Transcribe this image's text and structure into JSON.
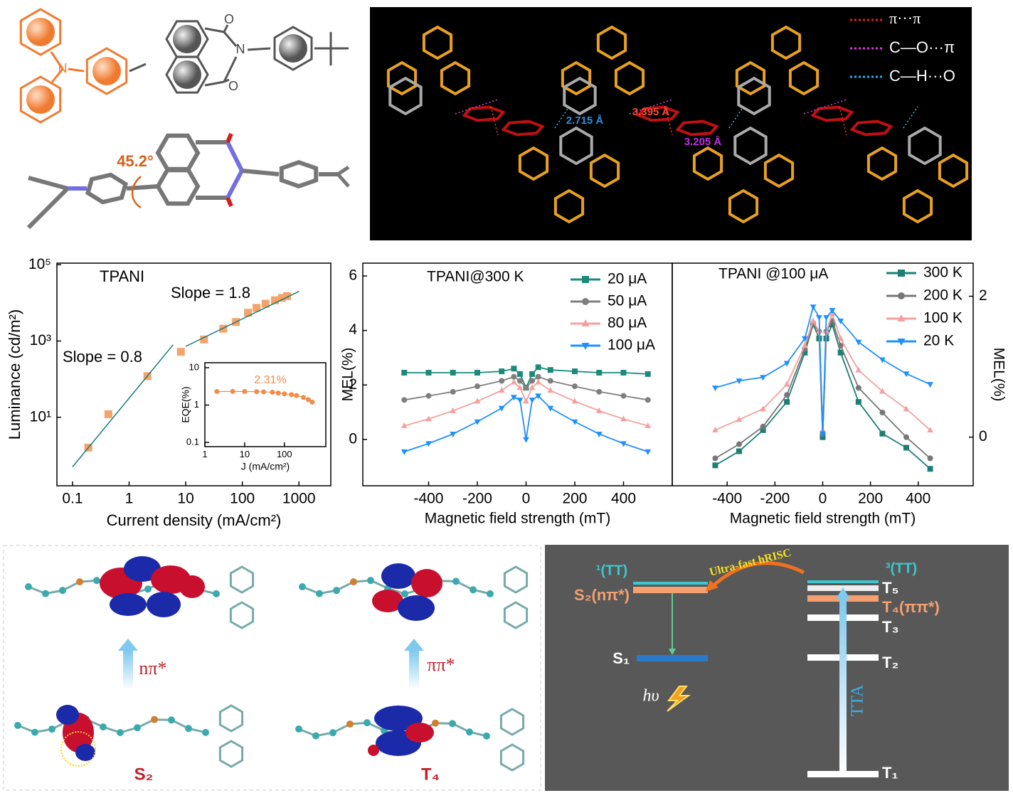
{
  "structure": {
    "atoms": [
      "N",
      "N",
      "O",
      "O"
    ],
    "angle": "45.2°"
  },
  "crystal": {
    "legend": [
      "π···π",
      "C—O···π",
      "C—H···O"
    ],
    "distances": [
      "2.715 Å",
      "3.395 Å",
      "3.205 Å"
    ]
  },
  "chart_data": [
    {
      "type": "scatter",
      "xscale": "log",
      "yscale": "log",
      "xlim": [
        0.053,
        3650
      ],
      "ylim": [
        0.16,
        110000
      ],
      "xticks": [
        0.1,
        1,
        10,
        100,
        1000
      ],
      "yticks": [
        {
          "value": 10,
          "label": "10¹"
        },
        {
          "value": 1000,
          "label": "10³"
        },
        {
          "value": 100000,
          "label": "10⁵"
        }
      ],
      "xlabel": "Current density (mA/cm²)",
      "ylabel": "Luminance (cd/m²)",
      "annotations": [
        "TPANI",
        "Slope = 1.8",
        "Slope = 0.8"
      ],
      "series": [
        {
          "x": [
            0.19,
            0.43,
            2.1,
            8.2,
            21,
            46,
            77,
            126,
            178,
            257,
            376,
            500,
            616
          ],
          "values": [
            1.6,
            12,
            120,
            520,
            1100,
            2100,
            3150,
            5500,
            7400,
            9500,
            11700,
            13500,
            15000
          ],
          "color": "#f4a46a",
          "marker": "square"
        },
        {
          "x": [
            0.1,
            6
          ],
          "values": [
            0.5,
            800
          ],
          "color": "#1a7a7a",
          "line": true
        },
        {
          "x": [
            10,
            1000
          ],
          "values": [
            724,
            20000
          ],
          "color": "#1a7a7a",
          "line": true
        }
      ],
      "inset": {
        "type": "scatter",
        "xscale": "log",
        "yscale": "log",
        "xlim": [
          1,
          1100
        ],
        "ylim": [
          0.077,
          13.6
        ],
        "xticks": [
          1,
          10,
          100
        ],
        "yticks": [
          0.1,
          1,
          10
        ],
        "xlabel": "J (mA/cm²)",
        "ylabel": "EQE(%)",
        "series": [
          {
            "x": [
              2,
              5,
              10,
              20,
              30,
              50,
              70,
              100,
              150,
              200,
              300,
              400,
              500
            ],
            "values": [
              2.3,
              2.31,
              2.3,
              2.28,
              2.25,
              2.2,
              2.1,
              2.0,
              1.9,
              1.8,
              1.6,
              1.4,
              1.2
            ],
            "value_labels": [
              null,
              "2.31%",
              null,
              null,
              null,
              null,
              null,
              null,
              null,
              null,
              null,
              null,
              null
            ],
            "color": "#f08c4a",
            "marker": "circle",
            "line": true
          }
        ]
      }
    },
    {
      "type": "line",
      "title": "TPANI@300 K",
      "xlim": [
        -670,
        600
      ],
      "ylim": [
        -1.7,
        6.47
      ],
      "xticks": [
        -400,
        -200,
        0,
        200,
        400
      ],
      "yticks": [
        0,
        2,
        4,
        6
      ],
      "xlabel": "Magnetic field strength (mT)",
      "ylabel": "MEL(%)",
      "legend": "upper right",
      "x": [
        -500,
        -400,
        -300,
        -200,
        -100,
        -50,
        -25,
        0,
        25,
        50,
        100,
        200,
        300,
        400,
        500
      ],
      "series": [
        {
          "name": "20 μA",
          "color": "#1b8a7a",
          "marker": "square",
          "values": [
            2.45,
            2.45,
            2.45,
            2.45,
            2.5,
            2.6,
            2.4,
            1.9,
            2.4,
            2.65,
            2.55,
            2.5,
            2.45,
            2.45,
            2.4
          ]
        },
        {
          "name": "50 μA",
          "color": "#7f7f7f",
          "marker": "circle",
          "values": [
            1.45,
            1.6,
            1.75,
            1.95,
            2.15,
            2.3,
            2.15,
            1.9,
            2.15,
            2.3,
            2.15,
            1.95,
            1.75,
            1.6,
            1.45
          ]
        },
        {
          "name": "80 μA",
          "color": "#f4a0a0",
          "marker": "triangle-up",
          "values": [
            0.5,
            0.75,
            1.05,
            1.4,
            1.8,
            2.1,
            1.9,
            1.4,
            1.9,
            2.1,
            1.8,
            1.4,
            1.05,
            0.75,
            0.5
          ]
        },
        {
          "name": "100 μA",
          "color": "#1e90ff",
          "marker": "triangle-down",
          "values": [
            -0.45,
            -0.15,
            0.2,
            0.65,
            1.15,
            1.55,
            1.45,
            0,
            1.45,
            1.6,
            1.15,
            0.65,
            0.2,
            -0.15,
            -0.45
          ]
        }
      ]
    },
    {
      "type": "line",
      "title": "TPANI @100 μA",
      "xlim": [
        -630,
        630
      ],
      "ylim": [
        -0.69,
        2.47
      ],
      "yaxis_side": "right",
      "xticks": [
        -400,
        -200,
        0,
        200,
        400
      ],
      "yticks": [
        0,
        2
      ],
      "xlabel": "Magnetic field strength (mT)",
      "ylabel": "MEL(%)",
      "legend": "upper right",
      "x": [
        -450,
        -350,
        -250,
        -150,
        -75,
        -40,
        -15,
        0,
        15,
        40,
        75,
        150,
        250,
        350,
        450
      ],
      "series": [
        {
          "name": "300 K",
          "color": "#1b7f73",
          "marker": "square",
          "values": [
            -0.4,
            -0.2,
            0.1,
            0.5,
            1.2,
            1.6,
            1.4,
            0,
            1.4,
            1.6,
            1.2,
            0.5,
            0.05,
            -0.15,
            -0.45
          ]
        },
        {
          "name": "200 K",
          "color": "#777777",
          "marker": "circle",
          "values": [
            -0.3,
            -0.1,
            0.15,
            0.6,
            1.25,
            1.6,
            1.5,
            0.05,
            1.5,
            1.65,
            1.3,
            0.7,
            0.35,
            0.0,
            -0.3
          ]
        },
        {
          "name": "100 K",
          "color": "#f4a0a0",
          "marker": "triangle-up",
          "values": [
            0.1,
            0.25,
            0.4,
            0.75,
            1.3,
            1.65,
            1.5,
            0.1,
            1.5,
            1.75,
            1.4,
            0.95,
            0.65,
            0.4,
            0.1
          ]
        },
        {
          "name": "20 K",
          "color": "#1e90ff",
          "marker": "triangle-down",
          "values": [
            0.7,
            0.8,
            0.85,
            1.05,
            1.4,
            1.85,
            1.7,
            0.05,
            1.7,
            1.8,
            1.65,
            1.35,
            1.1,
            0.9,
            0.75
          ]
        }
      ]
    }
  ],
  "orbitals": {
    "transitions": [
      "nπ*",
      "ππ*"
    ],
    "states": [
      "S₂",
      "T₄"
    ]
  },
  "energy_diagram": {
    "process": "Ultra-fast hRISC",
    "singlet_pair": "¹(TT)",
    "triplet_pair": "³(TT)",
    "singlets": [
      "S₂(nπ*)",
      "S₁"
    ],
    "triplets": [
      "T₅",
      "T₄(ππ*)",
      "T₃",
      "T₂",
      "T₁"
    ],
    "emission": "hυ",
    "upconversion": "TTA"
  }
}
